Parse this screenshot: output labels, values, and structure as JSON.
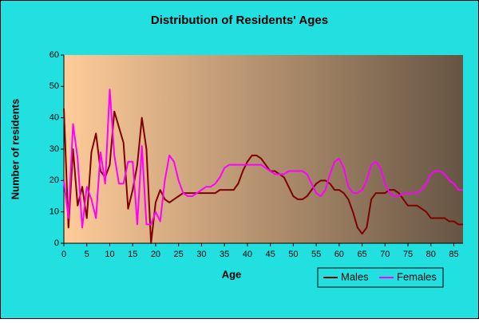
{
  "chart_data": {
    "type": "line",
    "title": "Distribution of Residents' Ages",
    "xlabel": "Age",
    "ylabel": "Number of residents",
    "x": [
      0,
      1,
      2,
      3,
      4,
      5,
      6,
      7,
      8,
      9,
      10,
      11,
      12,
      13,
      14,
      15,
      16,
      17,
      18,
      19,
      20,
      21,
      22,
      23,
      24,
      25,
      26,
      27,
      28,
      29,
      30,
      31,
      32,
      33,
      34,
      35,
      36,
      37,
      38,
      39,
      40,
      41,
      42,
      43,
      44,
      45,
      46,
      47,
      48,
      49,
      50,
      51,
      52,
      53,
      54,
      55,
      56,
      57,
      58,
      59,
      60,
      61,
      62,
      63,
      64,
      65,
      66,
      67,
      68,
      69,
      70,
      71,
      72,
      73,
      74,
      75,
      76,
      77,
      78,
      79,
      80,
      81,
      82,
      83,
      84,
      85,
      86,
      87
    ],
    "series": [
      {
        "name": "Males",
        "color": "#800000",
        "values": [
          43,
          5,
          30,
          12,
          18,
          8,
          29,
          35,
          23,
          21,
          25,
          42,
          37,
          32,
          11,
          17,
          25,
          40,
          30,
          0,
          13,
          17,
          14,
          13,
          14,
          15,
          16,
          16,
          16,
          16,
          16,
          16,
          16,
          16,
          17,
          17,
          17,
          17,
          19,
          23,
          26,
          28,
          28,
          27,
          25,
          23,
          23,
          22,
          21,
          18,
          15,
          14,
          14,
          15,
          17,
          19,
          20,
          20,
          19,
          17,
          17,
          16,
          14,
          10,
          5,
          3,
          5,
          14,
          16,
          16,
          16,
          17,
          17,
          16,
          14,
          12,
          12,
          12,
          11,
          10,
          8,
          8,
          8,
          8,
          7,
          7,
          6,
          6
        ]
      },
      {
        "name": "Females",
        "color": "#ff00ff",
        "values": [
          20,
          8,
          38,
          27,
          5,
          18,
          14,
          8,
          29,
          19,
          49,
          28,
          19,
          19,
          26,
          26,
          6,
          31,
          6,
          6,
          10,
          7,
          20,
          28,
          26,
          20,
          16,
          15,
          15,
          16,
          17,
          18,
          18,
          19,
          21,
          24,
          25,
          25,
          25,
          25,
          25,
          25,
          25,
          25,
          24,
          23,
          22,
          22,
          22,
          23,
          23,
          23,
          23,
          22,
          19,
          16,
          15,
          17,
          22,
          26,
          27,
          24,
          18,
          16,
          16,
          17,
          20,
          25,
          26,
          24,
          19,
          16,
          15,
          15,
          16,
          16,
          16,
          16,
          17,
          19,
          22,
          23,
          23,
          22,
          20,
          19,
          17,
          17
        ]
      }
    ],
    "xlim": [
      0,
      87
    ],
    "xticks": [
      0,
      5,
      10,
      15,
      20,
      25,
      30,
      35,
      40,
      45,
      50,
      55,
      60,
      65,
      70,
      75,
      80,
      85
    ],
    "ylim": [
      0,
      60
    ],
    "yticks": [
      0,
      10,
      20,
      30,
      40,
      50,
      60
    ],
    "grid": false,
    "legend": "bottom-right"
  }
}
